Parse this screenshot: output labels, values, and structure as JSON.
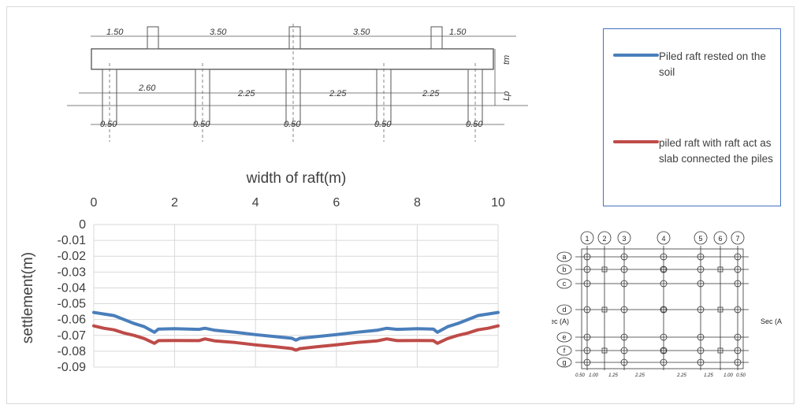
{
  "chart_data": {
    "type": "line",
    "xlabel": "width of raft(m)",
    "ylabel": "settlement(m)",
    "xlim": [
      0,
      10
    ],
    "ylim": [
      -0.09,
      0
    ],
    "x_ticks": [
      "0",
      "2",
      "4",
      "6",
      "8",
      "10"
    ],
    "y_ticks": [
      "0",
      "-0.01",
      "-0.02",
      "-0.03",
      "-0.04",
      "-0.05",
      "-0.06",
      "-0.07",
      "-0.08",
      "-0.09"
    ],
    "x_axis_position": "top",
    "grid": true,
    "legend_position": "right",
    "series": [
      {
        "name": "Piled raft rested on the soil",
        "color": "#4a7ebb",
        "x": [
          0,
          0.25,
          0.5,
          0.75,
          1.0,
          1.25,
          1.5,
          1.6,
          2.0,
          2.6,
          2.75,
          3.0,
          3.5,
          4.0,
          4.5,
          4.9,
          5.0,
          5.1,
          5.5,
          6.0,
          6.5,
          7.0,
          7.25,
          7.5,
          8.0,
          8.4,
          8.5,
          8.75,
          9.0,
          9.25,
          9.5,
          9.75,
          10
        ],
        "y": [
          -0.0555,
          -0.0565,
          -0.0575,
          -0.06,
          -0.0625,
          -0.0645,
          -0.068,
          -0.066,
          -0.0658,
          -0.0662,
          -0.0655,
          -0.0668,
          -0.068,
          -0.0695,
          -0.0708,
          -0.0718,
          -0.073,
          -0.0718,
          -0.0708,
          -0.0695,
          -0.068,
          -0.0668,
          -0.0655,
          -0.0662,
          -0.0658,
          -0.066,
          -0.068,
          -0.0645,
          -0.0625,
          -0.06,
          -0.0575,
          -0.0565,
          -0.0555
        ]
      },
      {
        "name": "piled raft with raft act as slab connected the piles",
        "color": "#be4b48",
        "x": [
          0,
          0.25,
          0.5,
          0.75,
          1.0,
          1.25,
          1.5,
          1.6,
          2.0,
          2.6,
          2.75,
          3.0,
          3.5,
          4.0,
          4.5,
          4.9,
          5.0,
          5.1,
          5.5,
          6.0,
          6.5,
          7.0,
          7.25,
          7.5,
          8.0,
          8.4,
          8.5,
          8.75,
          9.0,
          9.25,
          9.5,
          9.75,
          10
        ],
        "y": [
          -0.064,
          -0.0655,
          -0.0665,
          -0.0685,
          -0.07,
          -0.072,
          -0.075,
          -0.0733,
          -0.0732,
          -0.0733,
          -0.0722,
          -0.0735,
          -0.0745,
          -0.076,
          -0.0772,
          -0.0783,
          -0.0793,
          -0.0783,
          -0.0772,
          -0.076,
          -0.0745,
          -0.0735,
          -0.0722,
          -0.0733,
          -0.0732,
          -0.0733,
          -0.075,
          -0.072,
          -0.07,
          -0.0685,
          -0.0665,
          -0.0655,
          -0.064
        ]
      }
    ]
  },
  "section_drawing": {
    "top_dims": [
      "1.50",
      "3.50",
      "3.50",
      "1.50"
    ],
    "mid_dims": [
      "2.60",
      "2.25",
      "2.25",
      "2.25"
    ],
    "pile_dims": [
      "0.50",
      "0.50",
      "0.50",
      "0.50",
      "0.50"
    ],
    "side_labels": [
      "tm",
      "Lp"
    ]
  },
  "plan_drawing": {
    "columns": [
      "1",
      "2",
      "3",
      "4",
      "5",
      "6",
      "7"
    ],
    "rows": [
      "a",
      "b",
      "c",
      "d",
      "e",
      "f",
      "g"
    ],
    "section_left": "Sec (A)",
    "section_right": "Sec (A",
    "bottom_dims": [
      "0.50",
      "1.00",
      "1.25",
      "2.25",
      "2.25",
      "1.25",
      "1.00",
      "0.50"
    ]
  }
}
